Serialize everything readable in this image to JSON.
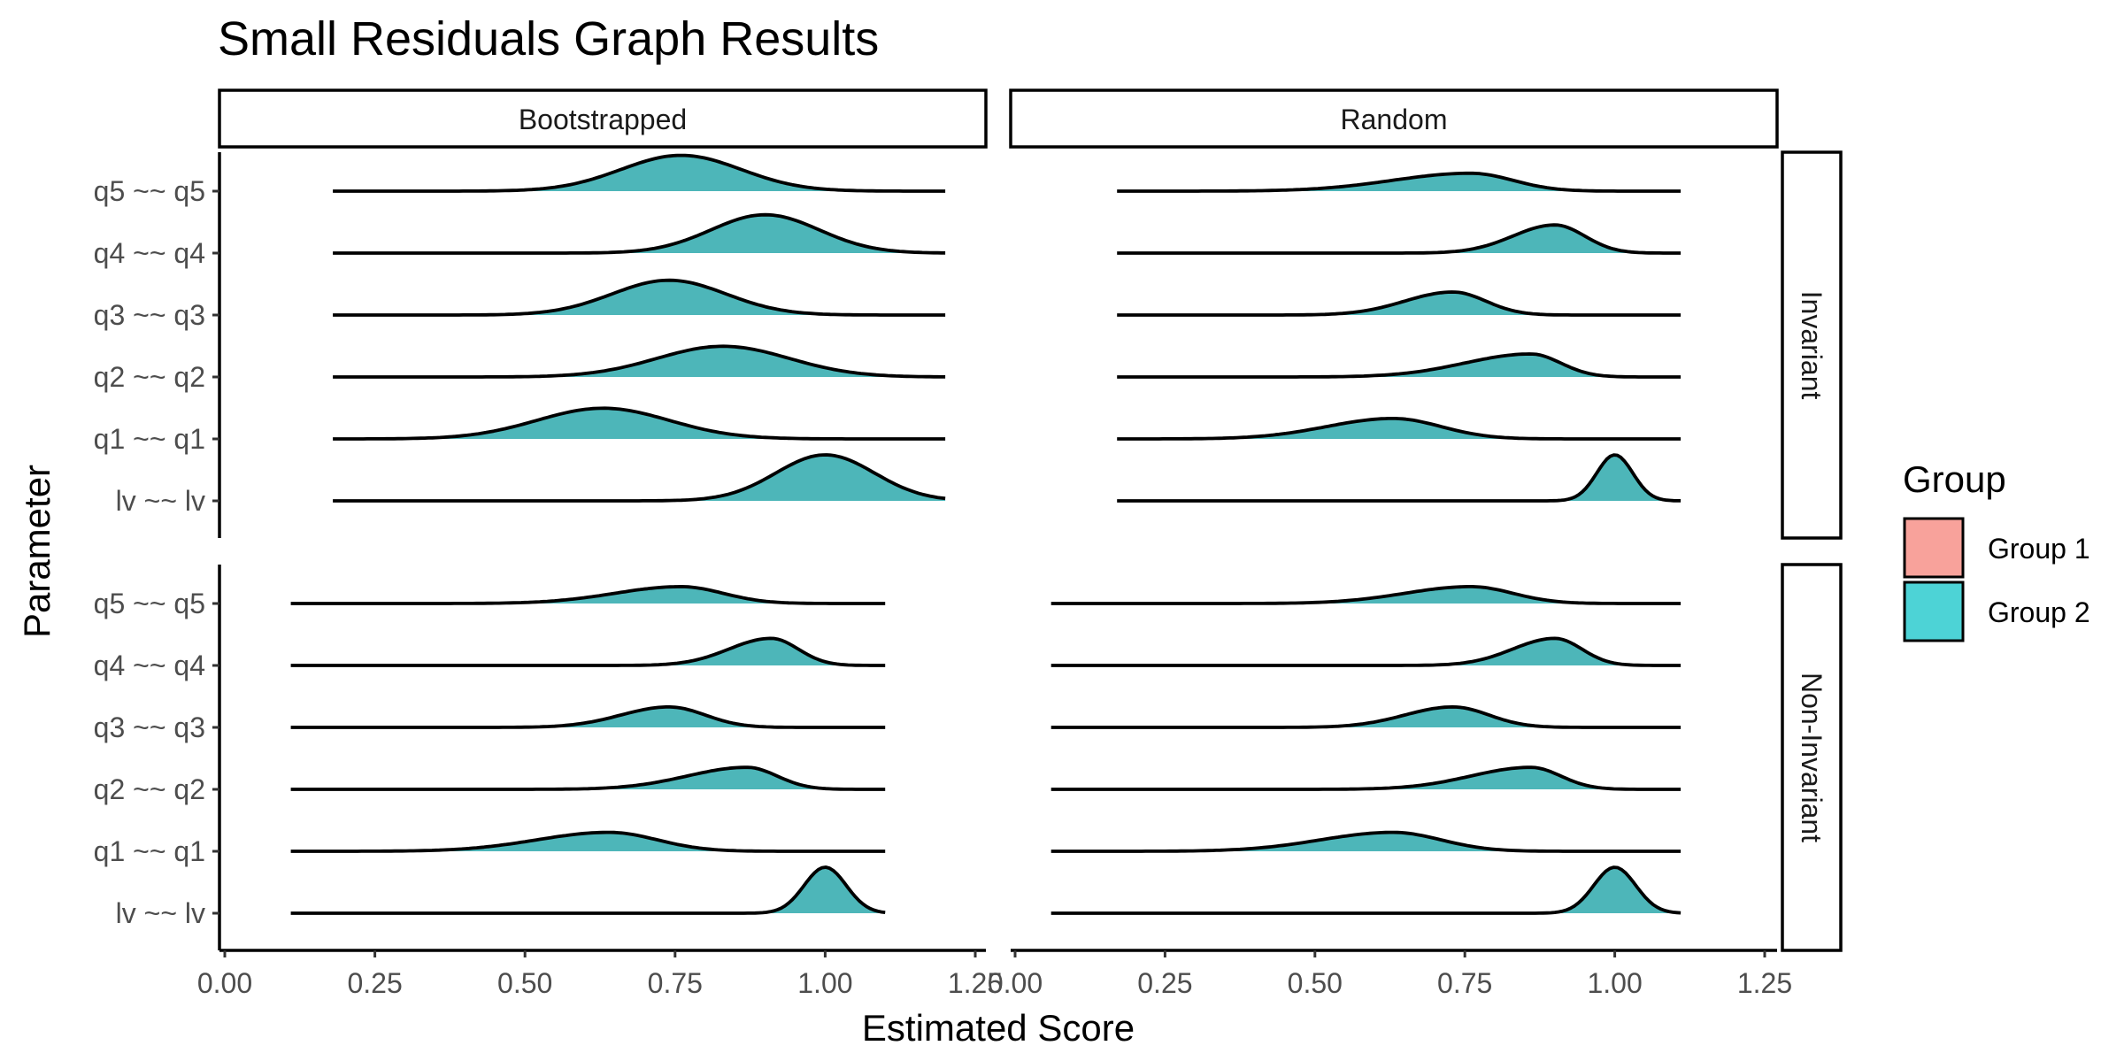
{
  "chart_data": {
    "type": "ridgeline",
    "title": "Small Residuals Graph Results",
    "xlabel": "Estimated Score",
    "ylabel": "Parameter",
    "xlim": [
      0,
      1.25
    ],
    "x_ticks": [
      "0.00",
      "0.25",
      "0.50",
      "0.75",
      "1.00",
      "1.25"
    ],
    "categories": [
      "lv ~~ lv",
      "q1 ~~ q1",
      "q2 ~~ q2",
      "q3 ~~ q3",
      "q4 ~~ q4",
      "q5 ~~ q5"
    ],
    "columns": [
      "Bootstrapped",
      "Random"
    ],
    "rows": [
      "Invariant",
      "Non-Invariant"
    ],
    "legend": {
      "title": "Group",
      "placement": "right",
      "items": [
        {
          "name": "Group 1",
          "color": "#F8766D"
        },
        {
          "name": "Group 2",
          "color": "#00BFC4"
        }
      ]
    },
    "fill_color": "#4DB6B9",
    "grid": false,
    "panels": [
      {
        "column": "Bootstrapped",
        "row": "Invariant",
        "x_range": [
          0.18,
          1.2
        ],
        "ridges": [
          {
            "parameter": "lv ~~ lv",
            "peak": 1.0,
            "sd": 0.082,
            "height": 0.9
          },
          {
            "parameter": "q1 ~~ q1",
            "peak": 0.63,
            "sd": 0.11,
            "height": 0.6
          },
          {
            "parameter": "q2 ~~ q2",
            "peak": 0.83,
            "sd": 0.11,
            "height": 0.6
          },
          {
            "parameter": "q3 ~~ q3",
            "peak": 0.74,
            "sd": 0.095,
            "height": 0.68
          },
          {
            "parameter": "q4 ~~ q4",
            "peak": 0.9,
            "sd": 0.09,
            "height": 0.75
          },
          {
            "parameter": "q5 ~~ q5",
            "peak": 0.76,
            "sd": 0.1,
            "height": 0.7
          }
        ]
      },
      {
        "column": "Random",
        "row": "Invariant",
        "x_range": [
          0.17,
          1.11
        ],
        "ridges": [
          {
            "parameter": "lv ~~ lv",
            "peak": 1.0,
            "sd": 0.03,
            "height": 0.9
          },
          {
            "parameter": "q1 ~~ q1",
            "peak": 0.63,
            "sd": 0.08,
            "left_sd": 0.11,
            "height": 0.4
          },
          {
            "parameter": "q2 ~~ q2",
            "peak": 0.86,
            "sd": 0.05,
            "left_sd": 0.11,
            "height": 0.45
          },
          {
            "parameter": "q3 ~~ q3",
            "peak": 0.73,
            "sd": 0.055,
            "left_sd": 0.08,
            "height": 0.45
          },
          {
            "parameter": "q4 ~~ q4",
            "peak": 0.9,
            "sd": 0.05,
            "left_sd": 0.07,
            "height": 0.55
          },
          {
            "parameter": "q5 ~~ q5",
            "peak": 0.76,
            "sd": 0.07,
            "left_sd": 0.13,
            "height": 0.35
          }
        ]
      },
      {
        "column": "Bootstrapped",
        "row": "Non-Invariant",
        "x_range": [
          0.11,
          1.1
        ],
        "ridges": [
          {
            "parameter": "lv ~~ lv",
            "peak": 1.0,
            "sd": 0.035,
            "height": 0.9
          },
          {
            "parameter": "q1 ~~ q1",
            "peak": 0.64,
            "sd": 0.08,
            "left_sd": 0.12,
            "height": 0.37
          },
          {
            "parameter": "q2 ~~ q2",
            "peak": 0.87,
            "sd": 0.05,
            "left_sd": 0.1,
            "height": 0.43
          },
          {
            "parameter": "q3 ~~ q3",
            "peak": 0.74,
            "sd": 0.06,
            "left_sd": 0.08,
            "height": 0.4
          },
          {
            "parameter": "q4 ~~ q4",
            "peak": 0.91,
            "sd": 0.045,
            "left_sd": 0.07,
            "height": 0.53
          },
          {
            "parameter": "q5 ~~ q5",
            "peak": 0.76,
            "sd": 0.07,
            "left_sd": 0.11,
            "height": 0.33
          }
        ]
      },
      {
        "column": "Random",
        "row": "Non-Invariant",
        "x_range": [
          0.06,
          1.11
        ],
        "ridges": [
          {
            "parameter": "lv ~~ lv",
            "peak": 1.0,
            "sd": 0.035,
            "height": 0.9
          },
          {
            "parameter": "q1 ~~ q1",
            "peak": 0.63,
            "sd": 0.08,
            "left_sd": 0.12,
            "height": 0.37
          },
          {
            "parameter": "q2 ~~ q2",
            "peak": 0.86,
            "sd": 0.05,
            "left_sd": 0.1,
            "height": 0.43
          },
          {
            "parameter": "q3 ~~ q3",
            "peak": 0.73,
            "sd": 0.06,
            "left_sd": 0.08,
            "height": 0.4
          },
          {
            "parameter": "q4 ~~ q4",
            "peak": 0.9,
            "sd": 0.045,
            "left_sd": 0.07,
            "height": 0.53
          },
          {
            "parameter": "q5 ~~ q5",
            "peak": 0.76,
            "sd": 0.07,
            "left_sd": 0.11,
            "height": 0.33
          }
        ]
      }
    ]
  }
}
